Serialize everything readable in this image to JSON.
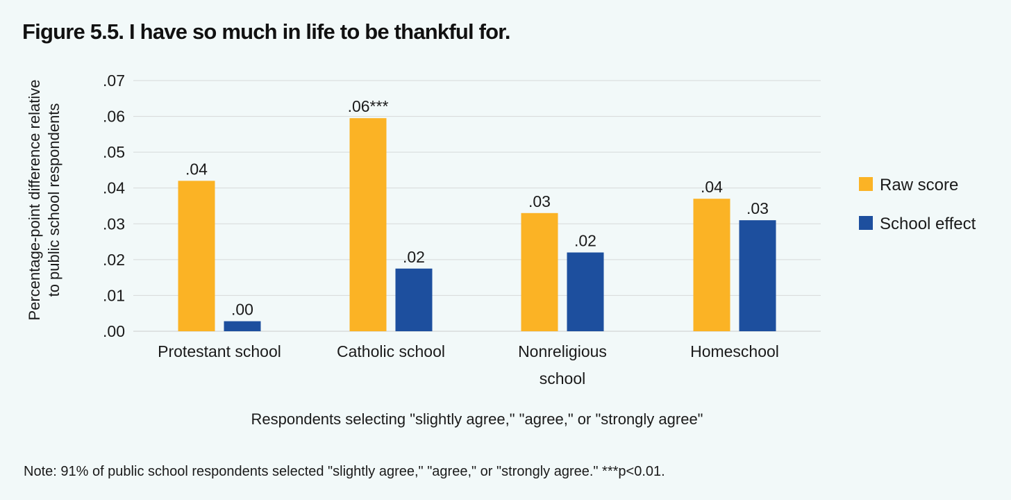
{
  "title": "Figure 5.5. I have so much in life to be thankful for.",
  "note": "Note: 91% of public school respondents selected \"slightly agree,\" \"agree,\" or \"strongly agree.\" ***p<0.01.",
  "colors": {
    "background": "#f2f9f9",
    "raw_score": "#fbb325",
    "school_effect": "#1d4f9e",
    "gridline": "#d6d9d9"
  },
  "chart_data": {
    "type": "bar",
    "title": "Figure 5.5. I have so much in life to be thankful for.",
    "xlabel": "Respondents selecting \"slightly agree,\" \"agree,\" or \"strongly agree\"",
    "ylabel": "Percentage-point difference relative to public school respondents",
    "ylabel_lines": [
      "Percentage-point difference relative",
      "to public school respondents"
    ],
    "ylim": [
      0,
      0.07
    ],
    "yticks": [
      0,
      0.01,
      0.02,
      0.03,
      0.04,
      0.05,
      0.06,
      0.07
    ],
    "ytick_labels": [
      ".00",
      ".01",
      ".02",
      ".03",
      ".04",
      ".05",
      ".06",
      ".07"
    ],
    "grid": true,
    "legend_position": "right",
    "categories": [
      "Protestant school",
      "Catholic school",
      "Nonreligious school",
      "Homeschool"
    ],
    "category_label_lines": [
      [
        "Protestant school"
      ],
      [
        "Catholic school"
      ],
      [
        "Nonreligious",
        "school"
      ],
      [
        "Homeschool"
      ]
    ],
    "series": [
      {
        "name": "Raw score",
        "values": [
          0.042,
          0.0595,
          0.033,
          0.037
        ],
        "labels": [
          ".04",
          ".06***",
          ".03",
          ".04"
        ]
      },
      {
        "name": "School effect",
        "values": [
          0.0028,
          0.0175,
          0.022,
          0.031
        ],
        "labels": [
          ".00",
          ".02",
          ".02",
          ".03"
        ]
      }
    ]
  }
}
